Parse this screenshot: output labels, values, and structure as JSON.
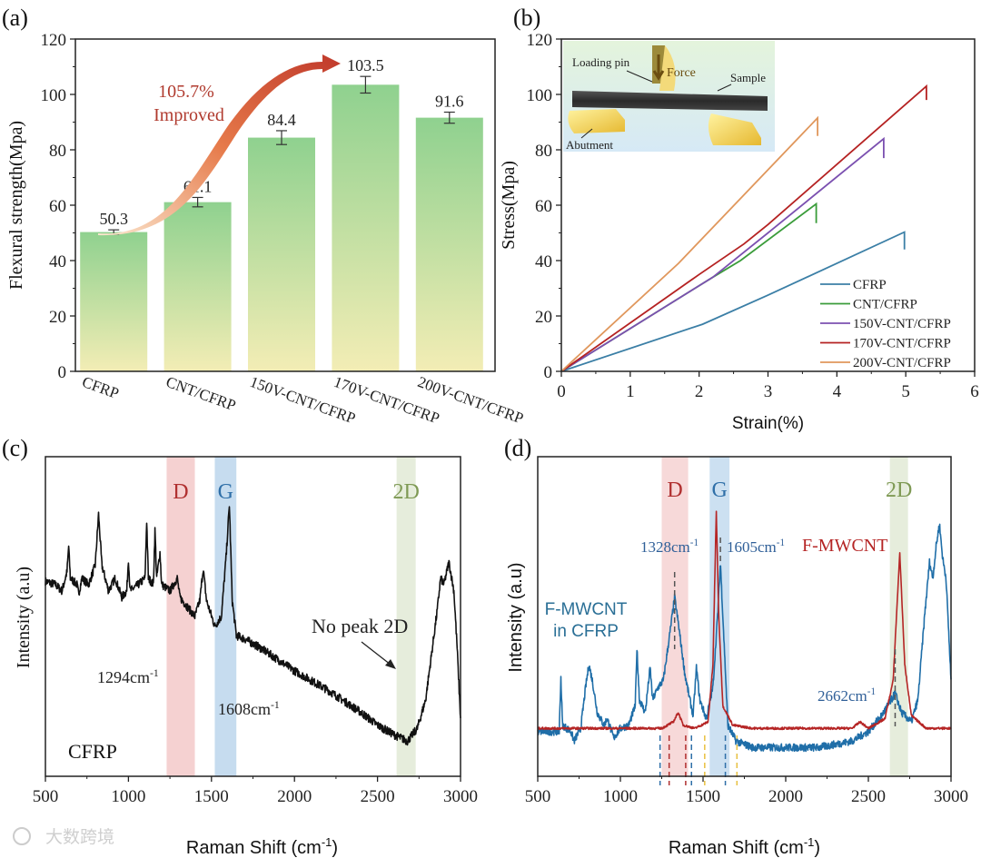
{
  "watermark": "大数跨境",
  "chart_data": [
    {
      "panel": "(a)",
      "type": "bar",
      "ylabel": "Flexural strength(Mpa)",
      "xlabel": "",
      "ylim": [
        0,
        120
      ],
      "yticks": [
        0,
        20,
        40,
        60,
        80,
        100,
        120
      ],
      "categories": [
        "CFRP",
        "CNT/CFRP",
        "150V-CNT/CFRP",
        "170V-CNT/CFRP",
        "200V-CNT/CFRP"
      ],
      "values": [
        50.3,
        61.1,
        84.4,
        103.5,
        91.6
      ],
      "errors": [
        0.8,
        1.7,
        2.5,
        3.0,
        2.0
      ],
      "data_labels": [
        "50.3",
        "61.1",
        "84.4",
        "103.5",
        "91.6"
      ],
      "annotation": {
        "line1": "105.7%",
        "line2": "Improved"
      },
      "colors": {
        "bar_top": "#8fd18f",
        "bar_bottom": "#f1ecb0",
        "arrow": "#c0392b",
        "annotation": "#b03a2e"
      }
    },
    {
      "panel": "(b)",
      "type": "line",
      "xlabel": "Strain(%)",
      "ylabel": "Stress(Mpa)",
      "xlim": [
        0,
        6
      ],
      "ylim": [
        0,
        120
      ],
      "xticks": [
        0,
        1,
        2,
        3,
        4,
        5,
        6
      ],
      "yticks": [
        0,
        20,
        40,
        60,
        80,
        100,
        120
      ],
      "legend_position": "bottom-right",
      "inset_labels": {
        "pin": "Loading pin",
        "force": "Force",
        "sample": "Sample",
        "abutment": "Abutment"
      },
      "series": [
        {
          "name": "CFRP",
          "color": "#3b7fa6",
          "points": [
            [
              0,
              0
            ],
            [
              2.05,
              17
            ],
            [
              3,
              27.5
            ],
            [
              4.98,
              50.3
            ],
            [
              4.98,
              44
            ]
          ]
        },
        {
          "name": "CNT/CFRP",
          "color": "#3a9c3a",
          "points": [
            [
              0,
              0
            ],
            [
              2.2,
              34
            ],
            [
              2.6,
              40
            ],
            [
              3.7,
              60.5
            ],
            [
              3.7,
              53.5
            ]
          ]
        },
        {
          "name": "150V-CNT/CFRP",
          "color": "#7b50b0",
          "points": [
            [
              0,
              0
            ],
            [
              2.2,
              34
            ],
            [
              3,
              50
            ],
            [
              4.68,
              84
            ],
            [
              4.68,
              77
            ]
          ]
        },
        {
          "name": "170V-CNT/CFRP",
          "color": "#b52222",
          "points": [
            [
              0,
              0
            ],
            [
              2.0,
              35
            ],
            [
              2.65,
              46
            ],
            [
              3,
              53
            ],
            [
              5.3,
              103
            ],
            [
              5.3,
              98
            ]
          ]
        },
        {
          "name": "200V-CNT/CFRP",
          "color": "#e0975c",
          "points": [
            [
              0,
              0
            ],
            [
              1.7,
              39
            ],
            [
              3.72,
              91.5
            ],
            [
              3.72,
              85
            ]
          ]
        }
      ]
    },
    {
      "panel": "(c)",
      "type": "line",
      "xlabel": "Raman Shift (cm-1)",
      "ylabel": "Intensity (a.u)",
      "xlim": [
        500,
        3000
      ],
      "xticks": [
        500,
        1000,
        1500,
        2000,
        2500,
        3000
      ],
      "sample_label": "CFRP",
      "bands": [
        {
          "label": "D",
          "range": [
            1230,
            1400
          ],
          "color": "#f3c9c9",
          "text_color": "#b03030"
        },
        {
          "label": "G",
          "range": [
            1520,
            1650
          ],
          "color": "#bcd6ec",
          "text_color": "#2f6fa8"
        },
        {
          "label": "2D",
          "range": [
            2615,
            2730
          ],
          "color": "#e2ead6",
          "text_color": "#7f9a55"
        }
      ],
      "annotations": [
        "1294cm-1",
        "1608cm-1",
        "No peak 2D"
      ],
      "series": [
        {
          "name": "CFRP",
          "color": "#111111",
          "noise": 1.3,
          "points": [
            [
              500,
              61
            ],
            [
              560,
              60
            ],
            [
              600,
              58
            ],
            [
              630,
              64
            ],
            [
              640,
              72
            ],
            [
              650,
              62
            ],
            [
              690,
              60
            ],
            [
              700,
              57
            ],
            [
              720,
              62
            ],
            [
              760,
              60
            ],
            [
              800,
              66
            ],
            [
              820,
              82
            ],
            [
              840,
              66
            ],
            [
              880,
              58
            ],
            [
              920,
              62
            ],
            [
              960,
              56
            ],
            [
              990,
              58
            ],
            [
              1000,
              68
            ],
            [
              1010,
              58
            ],
            [
              1060,
              60
            ],
            [
              1100,
              62
            ],
            [
              1110,
              80
            ],
            [
              1120,
              62
            ],
            [
              1150,
              60
            ],
            [
              1160,
              77
            ],
            [
              1170,
              62
            ],
            [
              1190,
              70
            ],
            [
              1200,
              60
            ],
            [
              1250,
              58
            ],
            [
              1294,
              62
            ],
            [
              1310,
              56
            ],
            [
              1400,
              50
            ],
            [
              1430,
              55
            ],
            [
              1450,
              65
            ],
            [
              1470,
              55
            ],
            [
              1520,
              47
            ],
            [
              1560,
              50
            ],
            [
              1590,
              70
            ],
            [
              1608,
              85
            ],
            [
              1625,
              55
            ],
            [
              1650,
              44
            ],
            [
              1700,
              43
            ],
            [
              1800,
              40
            ],
            [
              2000,
              33
            ],
            [
              2200,
              27
            ],
            [
              2400,
              20
            ],
            [
              2500,
              16
            ],
            [
              2600,
              13
            ],
            [
              2680,
              11
            ],
            [
              2740,
              15
            ],
            [
              2790,
              24
            ],
            [
              2830,
              40
            ],
            [
              2860,
              52
            ],
            [
              2880,
              62
            ],
            [
              2900,
              60
            ],
            [
              2930,
              67
            ],
            [
              2960,
              58
            ],
            [
              2980,
              40
            ],
            [
              3000,
              18
            ]
          ]
        }
      ]
    },
    {
      "panel": "(d)",
      "type": "line",
      "xlabel": "Raman Shift (cm-1)",
      "ylabel": "Intensity (a.u)",
      "xlim": [
        500,
        3000
      ],
      "xticks": [
        500,
        1000,
        1500,
        2000,
        2500,
        3000
      ],
      "bands": [
        {
          "label": "D",
          "range": [
            1250,
            1410
          ],
          "color": "#f6d2d2",
          "text_color": "#b03030"
        },
        {
          "label": "G",
          "range": [
            1540,
            1660
          ],
          "color": "#c3dbef",
          "text_color": "#2f6fa8"
        },
        {
          "label": "2D",
          "range": [
            2630,
            2740
          ],
          "color": "#e2ead6",
          "text_color": "#7f9a55"
        }
      ],
      "annotations": [
        "1328cm-1",
        "1605cm-1",
        "2662cm-1"
      ],
      "dashed_markers": [
        {
          "x": 1240,
          "color": "#2f6fa8"
        },
        {
          "x": 1430,
          "color": "#2f6fa8"
        },
        {
          "x": 1635,
          "color": "#2f6fa8"
        },
        {
          "x": 1295,
          "color": "#b03030"
        },
        {
          "x": 1395,
          "color": "#b03030"
        },
        {
          "x": 1510,
          "color": "#e8c040"
        },
        {
          "x": 1705,
          "color": "#e8c040"
        }
      ],
      "series": [
        {
          "name": "F-MWCNT in CFRP",
          "color": "#1f6ea8",
          "noise": 1.2,
          "points": [
            [
              500,
              14
            ],
            [
              600,
              14
            ],
            [
              630,
              14
            ],
            [
              640,
              31
            ],
            [
              650,
              16
            ],
            [
              700,
              14
            ],
            [
              720,
              11
            ],
            [
              760,
              15
            ],
            [
              790,
              28
            ],
            [
              810,
              35
            ],
            [
              830,
              30
            ],
            [
              860,
              20
            ],
            [
              900,
              16
            ],
            [
              920,
              18
            ],
            [
              960,
              12
            ],
            [
              1000,
              15
            ],
            [
              1050,
              16
            ],
            [
              1090,
              22
            ],
            [
              1100,
              40
            ],
            [
              1115,
              24
            ],
            [
              1150,
              20
            ],
            [
              1180,
              34
            ],
            [
              1195,
              24
            ],
            [
              1230,
              28
            ],
            [
              1260,
              30
            ],
            [
              1300,
              45
            ],
            [
              1328,
              56
            ],
            [
              1350,
              48
            ],
            [
              1390,
              32
            ],
            [
              1420,
              24
            ],
            [
              1440,
              19
            ],
            [
              1460,
              34
            ],
            [
              1480,
              24
            ],
            [
              1520,
              18
            ],
            [
              1560,
              28
            ],
            [
              1590,
              52
            ],
            [
              1605,
              67
            ],
            [
              1620,
              50
            ],
            [
              1650,
              16
            ],
            [
              1700,
              11
            ],
            [
              1800,
              9
            ],
            [
              2000,
              9
            ],
            [
              2200,
              9
            ],
            [
              2400,
              11
            ],
            [
              2500,
              14
            ],
            [
              2580,
              19
            ],
            [
              2640,
              24
            ],
            [
              2662,
              26
            ],
            [
              2700,
              20
            ],
            [
              2760,
              17
            ],
            [
              2800,
              24
            ],
            [
              2840,
              50
            ],
            [
              2870,
              67
            ],
            [
              2890,
              62
            ],
            [
              2910,
              72
            ],
            [
              2930,
              79
            ],
            [
              2950,
              68
            ],
            [
              2970,
              62
            ],
            [
              3000,
              30
            ]
          ]
        },
        {
          "name": "F-MWCNT",
          "color": "#b52525",
          "noise": 0.35,
          "points": [
            [
              500,
              15
            ],
            [
              1250,
              15
            ],
            [
              1320,
              17
            ],
            [
              1350,
              20
            ],
            [
              1380,
              16
            ],
            [
              1450,
              15
            ],
            [
              1530,
              17
            ],
            [
              1560,
              35
            ],
            [
              1580,
              83
            ],
            [
              1595,
              50
            ],
            [
              1620,
              22
            ],
            [
              1680,
              16
            ],
            [
              1800,
              15
            ],
            [
              2400,
              15
            ],
            [
              2450,
              17
            ],
            [
              2500,
              15
            ],
            [
              2600,
              18
            ],
            [
              2650,
              30
            ],
            [
              2690,
              70
            ],
            [
              2720,
              35
            ],
            [
              2760,
              19
            ],
            [
              2850,
              15
            ],
            [
              3000,
              15
            ]
          ]
        }
      ]
    }
  ]
}
